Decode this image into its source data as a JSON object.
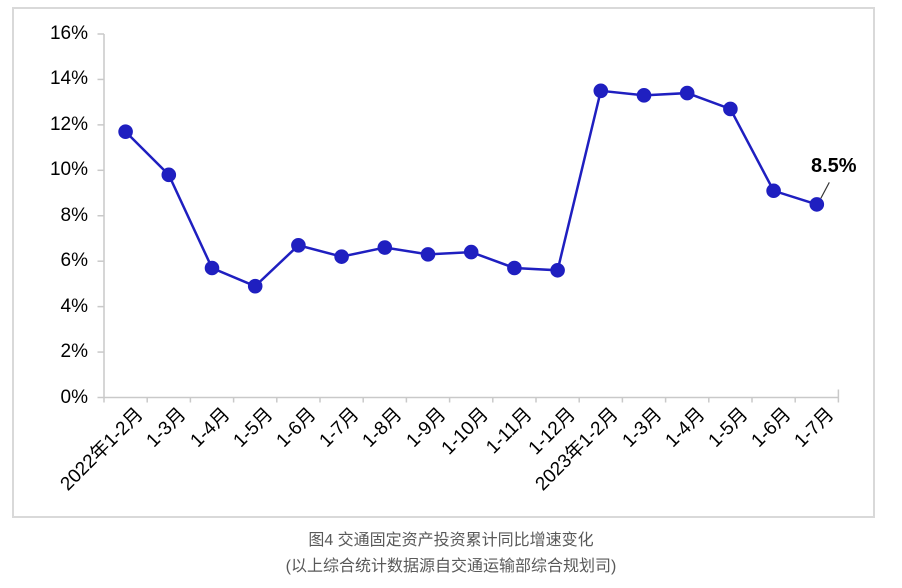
{
  "chart_data": {
    "type": "line",
    "categories": [
      "2022年1-2月",
      "1-3月",
      "1-4月",
      "1-5月",
      "1-6月",
      "1-7月",
      "1-8月",
      "1-9月",
      "1-10月",
      "1-11月",
      "1-12月",
      "2023年1-2月",
      "1-3月",
      "1-4月",
      "1-5月",
      "1-6月",
      "1-7月"
    ],
    "values": [
      11.7,
      9.8,
      5.7,
      4.9,
      6.7,
      6.2,
      6.6,
      6.3,
      6.4,
      5.7,
      5.6,
      13.5,
      13.3,
      13.4,
      12.7,
      9.1,
      8.5
    ],
    "ylim": [
      0,
      16
    ],
    "ytick_step": 2,
    "ytick_labels": [
      "0%",
      "2%",
      "4%",
      "6%",
      "8%",
      "10%",
      "12%",
      "14%",
      "16%"
    ],
    "grid": false,
    "legend": false,
    "annotation": {
      "text": "8.5%",
      "point_index": 16
    },
    "title": "图4  交通固定资产投资累计同比增速变化",
    "xlabel": "",
    "ylabel": ""
  },
  "caption": {
    "line1": "图4  交通固定资产投资累计同比增速变化",
    "line2": "(以上综合统计数据源自交通运输部综合规划司)"
  },
  "colors": {
    "line": "#1F1FC0",
    "marker": "#1F1FC0",
    "axis": "#C9C9C9",
    "frame_border": "#D9D9D9",
    "tick_label": "#000000",
    "data_label": "#000000",
    "leader_line": "#333333",
    "caption_text": "#595959",
    "background": "#FFFFFF"
  }
}
